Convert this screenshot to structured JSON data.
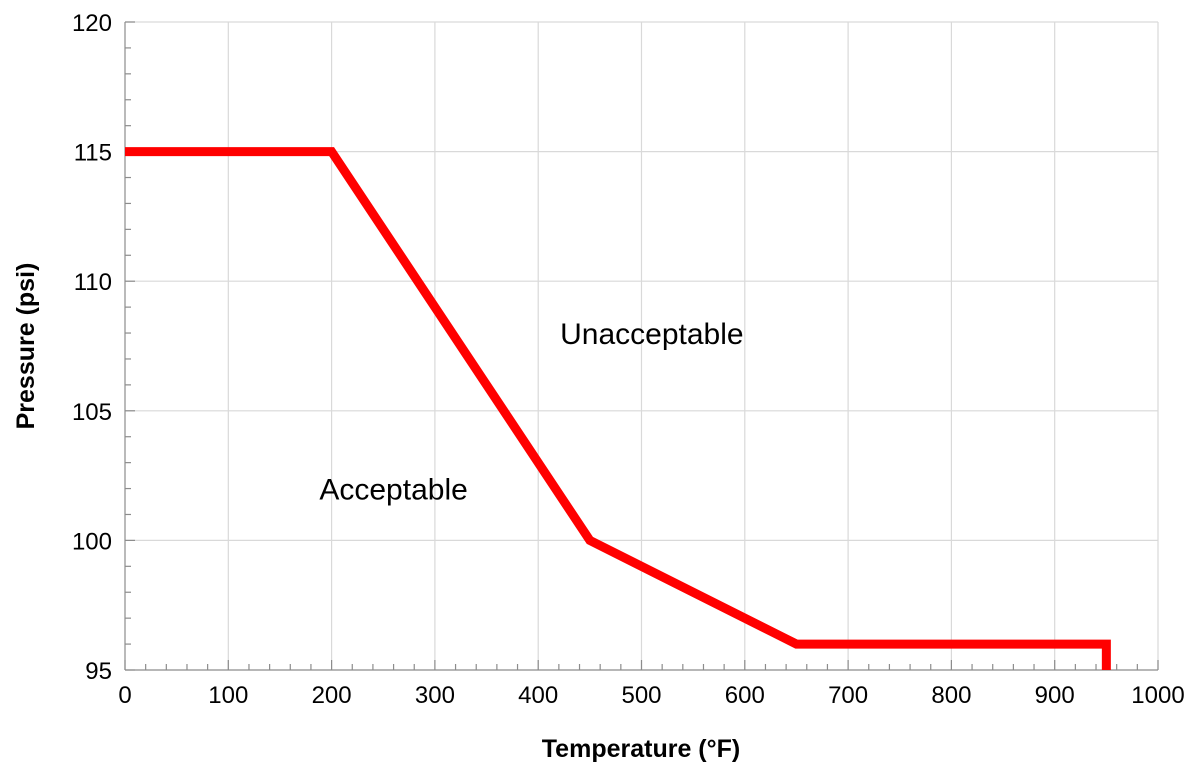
{
  "chart_data": {
    "type": "line",
    "title": "",
    "xlabel": "Temperature (°F)",
    "ylabel": "Pressure (psi)",
    "xlim": [
      0,
      1000
    ],
    "ylim": [
      95,
      120
    ],
    "x_ticks": [
      0,
      100,
      200,
      300,
      400,
      500,
      600,
      700,
      800,
      900,
      1000
    ],
    "y_ticks": [
      95,
      100,
      105,
      110,
      115,
      120
    ],
    "x_minor_step": 20,
    "y_minor_step": 1,
    "grid": true,
    "legend": "none",
    "series": [
      {
        "color": "#ff0000",
        "x": [
          0,
          200,
          450,
          650,
          950,
          950
        ],
        "y": [
          115,
          115,
          100,
          96,
          96,
          95
        ]
      }
    ],
    "annotations": [
      {
        "text": "Unacceptable",
        "x": 510,
        "y": 108
      },
      {
        "text": "Acceptable",
        "x": 260,
        "y": 102
      }
    ]
  }
}
